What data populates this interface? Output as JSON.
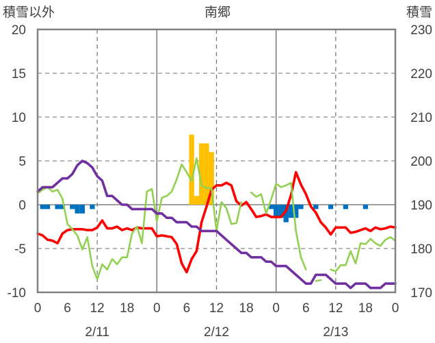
{
  "chart_data": {
    "type": "line",
    "title": "南郷",
    "y_left_label": "積雪以外",
    "y_right_label": "積雪",
    "y_left_range": [
      -10,
      20
    ],
    "y_left_ticks": [
      "20",
      "15",
      "10",
      "5",
      "0",
      "-5",
      "-10"
    ],
    "y_right_range": [
      170,
      230
    ],
    "y_right_ticks": [
      "230",
      "220",
      "210",
      "200",
      "190",
      "180",
      "170"
    ],
    "x_hour_ticks": [
      "0",
      "6",
      "12",
      "18",
      "0",
      "6",
      "12",
      "18",
      "0",
      "6",
      "12",
      "18",
      "0"
    ],
    "x_date_labels": [
      "2/11",
      "2/12",
      "2/13"
    ],
    "x_range_hours": [
      0,
      72
    ],
    "grid": "dashed verticals at 12h, solid day separators, horizontal line at 0",
    "colors": {
      "red_series": "#ff0000",
      "green_series": "#92d050",
      "purple_series": "#7030a0",
      "blue_bars": "#0070c0",
      "orange_bars": "#ffc000",
      "frame": "#808080"
    },
    "series": [
      {
        "color": "red",
        "axis": "left",
        "x": [
          0,
          1,
          2,
          3,
          4,
          5,
          6,
          7,
          8,
          9,
          10,
          11,
          12,
          13,
          14,
          15,
          16,
          17,
          18,
          19,
          20,
          21,
          22,
          23,
          24,
          25,
          26,
          27,
          28,
          29,
          30,
          31,
          32,
          33,
          34,
          35,
          36,
          37,
          38,
          39,
          40,
          41,
          42,
          43,
          44,
          45,
          46,
          47,
          48,
          49,
          50,
          51,
          52,
          53,
          54,
          55,
          56,
          57,
          58,
          59,
          60,
          61,
          62,
          63,
          64,
          65,
          66,
          67,
          68,
          69,
          70,
          71,
          72
        ],
        "y": [
          -3.3,
          -3.5,
          -4,
          -4.1,
          -4.4,
          -3.3,
          -2.9,
          -2.8,
          -2.8,
          -2.8,
          -2.9,
          -2.9,
          -2.6,
          -1.8,
          -2.7,
          -2.7,
          -2.5,
          -2.9,
          -2.7,
          -2.9,
          -2.6,
          -2.7,
          -2.7,
          -2.7,
          -3.6,
          -3.5,
          -3.6,
          -3.7,
          -4.5,
          -6.7,
          -7.7,
          -6.2,
          -5.3,
          -2,
          -0.2,
          1.7,
          2.2,
          2.2,
          2.5,
          2.2,
          0.4,
          -0.1,
          0.3,
          -0.5,
          -1.4,
          -1.3,
          -1.1,
          -1.4,
          -1.4,
          -1.4,
          -0.7,
          1.1,
          3.7,
          2.3,
          1.2,
          -0.2,
          -0.9,
          -2,
          -2.6,
          -3.4,
          -2.6,
          -2.6,
          -2.6,
          -3.2,
          -3.1,
          -2.9,
          -2.7,
          -3,
          -2.6,
          -2.8,
          -2.7,
          -2.5,
          -2.6
        ]
      },
      {
        "color": "green",
        "axis": "left",
        "x": [
          0,
          1,
          2,
          3,
          4,
          5,
          6,
          7,
          8,
          9,
          10,
          11,
          12,
          13,
          14,
          15,
          16,
          17,
          18,
          19,
          20,
          21,
          22,
          23,
          24,
          25,
          26,
          27,
          28,
          29,
          30,
          31,
          32,
          33,
          34,
          35,
          36,
          37,
          38,
          39,
          40,
          41,
          42,
          43,
          44,
          45,
          46,
          47,
          48,
          49,
          50,
          51,
          52,
          53,
          54,
          55,
          56,
          57,
          58,
          59,
          60,
          61,
          62,
          63,
          64,
          65,
          66,
          67,
          68,
          69,
          70,
          71,
          72
        ],
        "y": [
          1.3,
          1.7,
          2.0,
          1.5,
          1.7,
          0.7,
          -2.2,
          -2.8,
          -3.5,
          -5.1,
          -3.7,
          -7,
          -8.5,
          -6.8,
          -7.4,
          -6.2,
          -6.8,
          -6,
          -6,
          -3.3,
          -2.5,
          -4.4,
          1.5,
          1.8,
          -1.9,
          0.8,
          1.0,
          1.5,
          2.9,
          4.6,
          3.7,
          2.7,
          5.3,
          2.2,
          1.9,
          1.9,
          -3.0,
          0.3,
          -0.4,
          -2.2,
          -2.1,
          0.3,
          null,
          1.4,
          0.9,
          1.2,
          -1.0,
          0.6,
          2.4,
          2.0,
          2.2,
          2.5,
          -3.0,
          -6.0,
          -7.4,
          null,
          -8.7,
          -8.6,
          null,
          -7.4,
          -7.6,
          -6.9,
          -6.9,
          -5.3,
          -6.7,
          -4.4,
          -4.5,
          -3.9,
          -4.4,
          -4.7,
          -4.0,
          -3.7,
          -4.1
        ]
      },
      {
        "color": "purple",
        "axis": "right",
        "x": [
          0,
          1,
          2,
          3,
          4,
          5,
          6,
          7,
          8,
          9,
          10,
          11,
          12,
          13,
          14,
          15,
          16,
          17,
          18,
          19,
          20,
          21,
          22,
          23,
          24,
          25,
          26,
          27,
          28,
          29,
          30,
          31,
          32,
          33,
          34,
          35,
          36,
          37,
          38,
          39,
          40,
          41,
          42,
          43,
          44,
          45,
          46,
          47,
          48,
          49,
          50,
          51,
          52,
          53,
          54,
          55,
          56,
          57,
          58,
          59,
          60,
          61,
          62,
          63,
          64,
          65,
          66,
          67,
          68,
          69,
          70,
          71,
          72
        ],
        "y": [
          193,
          194,
          194,
          194,
          195,
          196,
          196,
          197,
          199,
          200,
          199.5,
          198.5,
          196.5,
          195.5,
          192,
          192,
          191,
          190,
          190,
          189,
          189,
          189,
          189,
          189,
          188,
          188,
          187,
          187,
          186,
          186,
          186,
          185,
          185,
          184,
          184,
          184,
          184,
          183,
          182,
          181,
          180,
          179,
          179,
          178,
          178,
          178,
          177,
          177,
          176,
          176,
          176,
          175,
          174,
          173,
          172,
          172,
          174,
          174,
          174,
          173,
          172,
          172,
          172,
          171,
          172,
          172,
          172,
          171,
          171,
          171,
          172,
          172,
          172
        ]
      }
    ],
    "bars": [
      {
        "color": "blue",
        "axis": "left",
        "x": [
          1,
          2,
          4,
          5,
          7,
          8,
          9,
          11,
          47,
          48,
          49,
          50,
          51,
          52,
          53,
          56,
          59,
          62,
          66
        ],
        "values": [
          -0.5,
          -0.5,
          -0.5,
          -0.5,
          -0.5,
          -1.0,
          -1.0,
          -0.5,
          -0.5,
          -1.5,
          -1.5,
          -2.0,
          -1.5,
          -1.5,
          -0.5,
          -0.5,
          -0.5,
          -0.5,
          -0.5
        ]
      },
      {
        "color": "orange",
        "axis": "left",
        "x": [
          31,
          32,
          33,
          34,
          35
        ],
        "values": [
          8.0,
          1.0,
          7.0,
          7.0,
          6.0
        ]
      }
    ]
  }
}
